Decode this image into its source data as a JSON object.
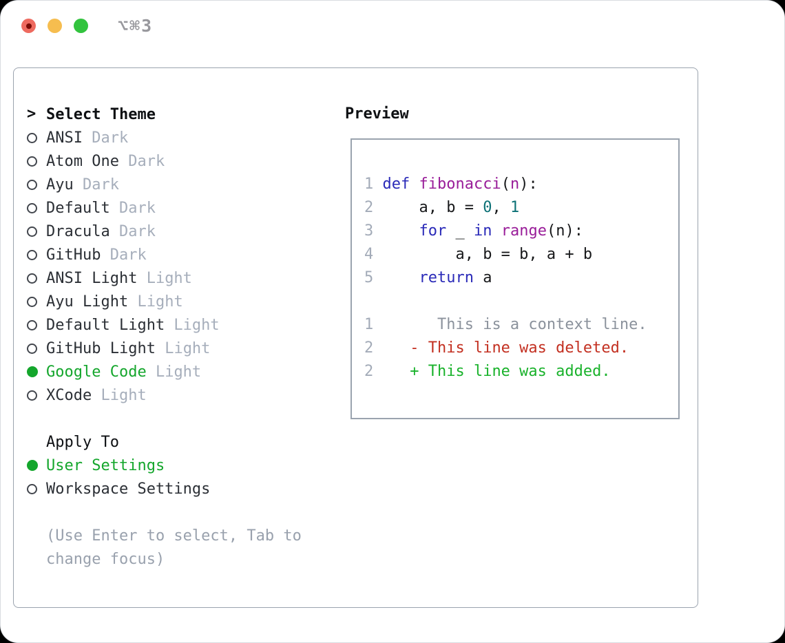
{
  "window": {
    "title": "⌥⌘3",
    "traffic_lights": [
      "close",
      "minimize",
      "zoom"
    ]
  },
  "theme_list": {
    "prompt": ">",
    "header": "Select Theme",
    "items": [
      {
        "name": "ANSI",
        "variant": "Dark",
        "selected": false
      },
      {
        "name": "Atom One",
        "variant": "Dark",
        "selected": false
      },
      {
        "name": "Ayu",
        "variant": "Dark",
        "selected": false
      },
      {
        "name": "Default",
        "variant": "Dark",
        "selected": false
      },
      {
        "name": "Dracula",
        "variant": "Dark",
        "selected": false
      },
      {
        "name": "GitHub",
        "variant": "Dark",
        "selected": false
      },
      {
        "name": "ANSI Light",
        "variant": "Light",
        "selected": false
      },
      {
        "name": "Ayu Light",
        "variant": "Light",
        "selected": false
      },
      {
        "name": "Default Light",
        "variant": "Light",
        "selected": false
      },
      {
        "name": "GitHub Light",
        "variant": "Light",
        "selected": false
      },
      {
        "name": "Google Code",
        "variant": "Light",
        "selected": true
      },
      {
        "name": "XCode",
        "variant": "Light",
        "selected": false
      }
    ]
  },
  "apply_to": {
    "header": "Apply To",
    "options": [
      {
        "label": "User Settings",
        "selected": true
      },
      {
        "label": "Workspace Settings",
        "selected": false
      }
    ]
  },
  "help_lines": [
    "(Use Enter to select, Tab to",
    "change focus)"
  ],
  "preview": {
    "header": "Preview",
    "lines": [
      {
        "num": "1",
        "tokens": [
          [
            "kw",
            "def "
          ],
          [
            "fn",
            "fibonacci"
          ],
          [
            "pl",
            "("
          ],
          [
            "fn",
            "n"
          ],
          [
            "pl",
            "):"
          ]
        ]
      },
      {
        "num": "2",
        "tokens": [
          [
            "pl",
            "    a, b = "
          ],
          [
            "lit",
            "0"
          ],
          [
            "pl",
            ", "
          ],
          [
            "lit",
            "1"
          ]
        ]
      },
      {
        "num": "3",
        "tokens": [
          [
            "pl",
            "    "
          ],
          [
            "kw",
            "for"
          ],
          [
            "pl",
            " _ "
          ],
          [
            "kw",
            "in"
          ],
          [
            "pl",
            " "
          ],
          [
            "fn",
            "range"
          ],
          [
            "pl",
            "(n):"
          ]
        ]
      },
      {
        "num": "4",
        "tokens": [
          [
            "pl",
            "        a, b = b, a + b"
          ]
        ]
      },
      {
        "num": "5",
        "tokens": [
          [
            "pl",
            "    "
          ],
          [
            "kw",
            "return"
          ],
          [
            "pl",
            " a"
          ]
        ]
      },
      {
        "num": "",
        "tokens": []
      },
      {
        "num": "1",
        "tokens": [
          [
            "ctx",
            "      This is a context line."
          ]
        ]
      },
      {
        "num": "2",
        "tokens": [
          [
            "del",
            "   - This line was deleted."
          ]
        ]
      },
      {
        "num": "2",
        "tokens": [
          [
            "add",
            "   + This line was added."
          ]
        ]
      }
    ]
  },
  "colors": {
    "header": "#0e1013",
    "text": "#2b2f35",
    "suffix": "#a6aebb",
    "help": "#99a1ad",
    "green": "#14a62c",
    "ring": "#42464d",
    "border": "#9aa3ae",
    "title": "#98989d",
    "linenum": "#a3abb8",
    "keyword": "#2a2ab8",
    "function": "#991d99",
    "literal": "#0c7176",
    "code": "#17181a",
    "context": "#8b929c",
    "deleted": "#c33021",
    "added": "#19b22b",
    "traffic_red": "#ee6a5f",
    "traffic_red_dot": "#7b0c06",
    "traffic_yellow": "#f6bd4f",
    "traffic_green": "#32c33e"
  }
}
